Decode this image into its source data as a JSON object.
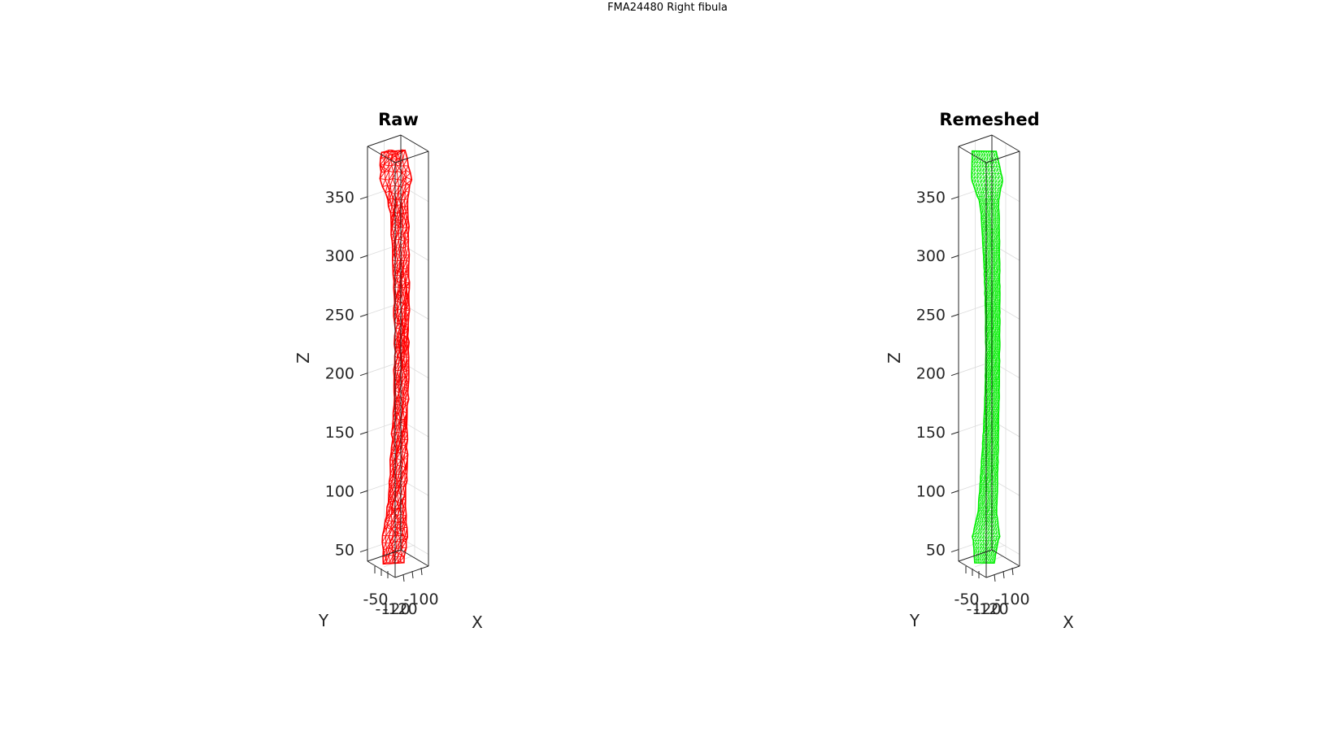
{
  "figure": {
    "title": "FMA24480 Right fibula"
  },
  "colors": {
    "raw_mesh": "#ff0000",
    "remeshed_mesh": "#00ee00",
    "axis": "#262626",
    "grid": "#dcdcdc"
  },
  "chart_data": [
    {
      "type": "mesh3d",
      "title": "Raw",
      "color": "#ff0000",
      "mesh_style": "coarse",
      "zlabel": "Z",
      "xlabel": "X",
      "ylabel": "Y",
      "zticks": [
        50,
        100,
        150,
        200,
        250,
        300,
        350
      ],
      "zlim": [
        40,
        390
      ],
      "yticks": [
        "-50",
        "-120"
      ],
      "xticks": [
        "-100",
        "-120"
      ],
      "grid": true
    },
    {
      "type": "mesh3d",
      "title": "Remeshed",
      "color": "#00ee00",
      "mesh_style": "fine",
      "zlabel": "Z",
      "xlabel": "X",
      "ylabel": "Y",
      "zticks": [
        50,
        100,
        150,
        200,
        250,
        300,
        350
      ],
      "zlim": [
        40,
        390
      ],
      "yticks": [
        "-50",
        "-120"
      ],
      "xticks": [
        "-100",
        "-120"
      ],
      "grid": true
    }
  ]
}
